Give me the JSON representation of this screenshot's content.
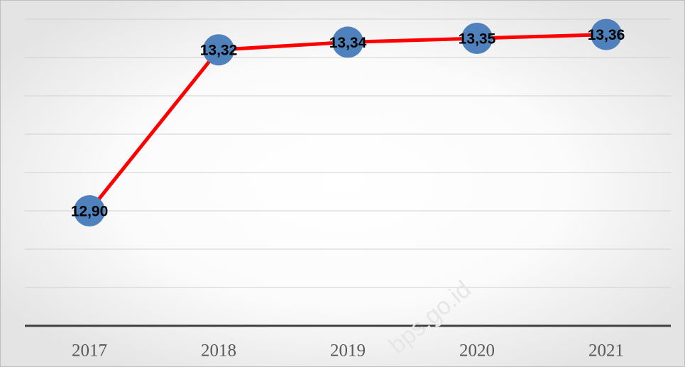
{
  "chart_data": {
    "type": "line",
    "categories": [
      "2017",
      "2018",
      "2019",
      "2020",
      "2021"
    ],
    "series": [
      {
        "name": null,
        "color": "#ff0000",
        "marker_color": "#4f81bd",
        "values": [
          12.9,
          13.32,
          13.34,
          13.35,
          13.36
        ],
        "value_labels": [
          "12,90",
          "13,32",
          "13,34",
          "13,35",
          "13,36"
        ]
      }
    ],
    "ylim": [
      12.6,
      13.4
    ],
    "yticks": [
      12.6,
      12.7,
      12.8,
      12.9,
      13.0,
      13.1,
      13.2,
      13.3,
      13.4
    ],
    "grid": true,
    "watermark": "bps.go.id"
  }
}
